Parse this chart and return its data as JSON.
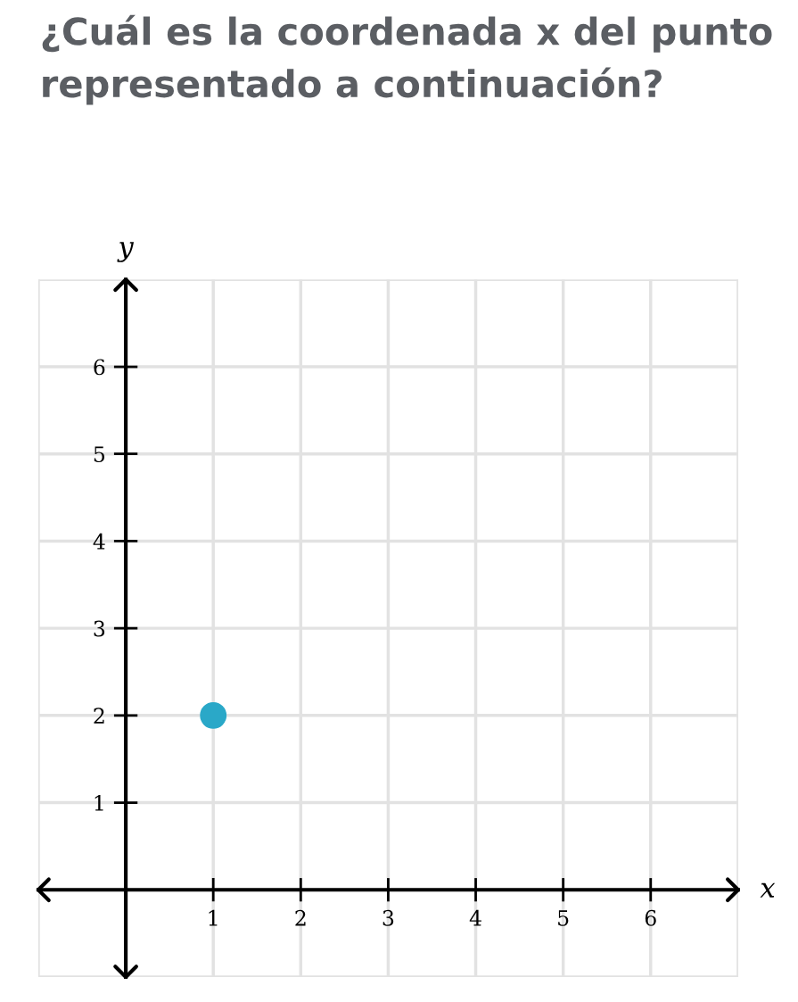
{
  "chart_data": {
    "type": "scatter",
    "title": "¿Cuál es la coordenada x del punto representado a continuación?",
    "xlabel": "x",
    "ylabel": "y",
    "x": [
      1
    ],
    "series": [
      {
        "color": "#2aa8c8",
        "values": [
          2
        ]
      }
    ],
    "xlim": [
      -1,
      7
    ],
    "ylim": [
      -1,
      7
    ],
    "xticks": [
      1,
      2,
      3,
      4,
      5,
      6
    ],
    "yticks": [
      1,
      2,
      3,
      4,
      5,
      6
    ],
    "grid": true,
    "marker": "circle"
  }
}
